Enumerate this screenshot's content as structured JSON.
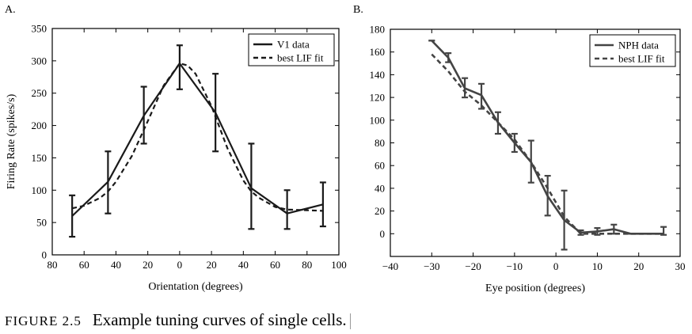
{
  "caption": {
    "label": "FIGURE 2.5",
    "text": "Example tuning curves of single cells."
  },
  "chart_data": [
    {
      "type": "line",
      "panel_label": "A.",
      "xlabel": "Orientation (degrees)",
      "ylabel": "Firing Rate (spikes/s)",
      "xlim": [
        -80,
        100
      ],
      "ylim": [
        0,
        350
      ],
      "x_ticks": [
        -80,
        -60,
        -40,
        -20,
        0,
        20,
        40,
        60,
        80,
        100
      ],
      "x_tick_labels": [
        "80",
        "60",
        "40",
        "20",
        "0",
        "20",
        "40",
        "60",
        "80",
        "100"
      ],
      "y_ticks": [
        0,
        50,
        100,
        150,
        200,
        250,
        300,
        350
      ],
      "y_tick_labels": [
        "0",
        "50",
        "100",
        "150",
        "200",
        "250",
        "300",
        "350"
      ],
      "grid": false,
      "legend": "top-right",
      "color": "#1a1a1a",
      "series": [
        {
          "name": "V1 data",
          "style": "solid",
          "x": [
            -67.5,
            -45,
            -22.5,
            0,
            22.5,
            45,
            67.5,
            90
          ],
          "y": [
            60,
            113,
            215,
            296,
            220,
            103,
            64,
            78
          ],
          "error_low": [
            28,
            64,
            172,
            256,
            160,
            40,
            40,
            44
          ],
          "error_high": [
            92,
            160,
            260,
            324,
            280,
            172,
            100,
            112
          ]
        },
        {
          "name": "best LIF fit",
          "style": "dashed",
          "x": [
            -67.5,
            -60,
            -50,
            -45,
            -40,
            -30,
            -20,
            -10,
            0,
            5,
            10,
            20,
            30,
            40,
            45,
            50,
            60,
            67.5,
            80,
            90
          ],
          "y": [
            72,
            76,
            88,
            98,
            113,
            153,
            207,
            262,
            296,
            293,
            280,
            230,
            165,
            115,
            98,
            88,
            74,
            70,
            69,
            68
          ]
        }
      ]
    },
    {
      "type": "line",
      "panel_label": "B.",
      "xlabel": "Eye position (degrees)",
      "ylabel": "",
      "xlim": [
        -40,
        30
      ],
      "ylim": [
        -20,
        180
      ],
      "x_ticks": [
        -40,
        -30,
        -20,
        -10,
        0,
        10,
        20,
        30
      ],
      "x_tick_labels": [
        "−40",
        "−30",
        "−20",
        "−10",
        "0",
        "10",
        "20",
        "30"
      ],
      "y_ticks": [
        0,
        20,
        40,
        60,
        80,
        100,
        120,
        140,
        160,
        180
      ],
      "y_tick_labels": [
        "0",
        "20",
        "40",
        "60",
        "80",
        "100",
        "120",
        "140",
        "160",
        "180"
      ],
      "grid": false,
      "legend": "top-right",
      "color": "#444444",
      "series": [
        {
          "name": "NPH data",
          "style": "solid",
          "x": [
            -30,
            -26,
            -22,
            -18,
            -14,
            -10,
            -6,
            -2,
            2,
            6,
            10,
            14,
            18,
            26
          ],
          "y": [
            170,
            155,
            128,
            122,
            98,
            80,
            63,
            33,
            12,
            1,
            2,
            4,
            0,
            0
          ],
          "error_low": [
            170,
            151,
            120,
            110,
            88,
            72,
            45,
            16,
            -14,
            -1,
            -1,
            0,
            0,
            -1
          ],
          "error_high": [
            170,
            159,
            137,
            132,
            107,
            88,
            82,
            51,
            38,
            3,
            5,
            8,
            0,
            6
          ]
        },
        {
          "name": "best LIF fit",
          "style": "dashed",
          "x": [
            -30,
            -26,
            -22,
            -18,
            -14,
            -10,
            -6,
            -2,
            2,
            6,
            10,
            14,
            18,
            26
          ],
          "y": [
            158,
            143,
            125,
            113,
            98,
            83,
            63,
            40,
            15,
            0,
            0,
            0,
            0,
            0
          ]
        }
      ]
    }
  ]
}
